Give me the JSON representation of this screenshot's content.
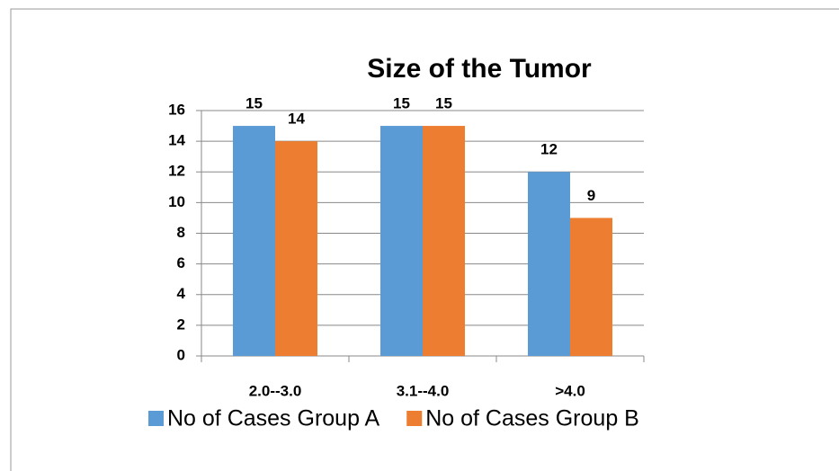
{
  "chart_data": {
    "type": "bar",
    "title": "Size of the Tumor",
    "categories": [
      "2.0--3.0",
      "3.1--4.0",
      ">4.0"
    ],
    "series": [
      {
        "name": "No of Cases Group A",
        "color": "#5b9bd5",
        "values": [
          15,
          15,
          12
        ]
      },
      {
        "name": "No of Cases Group B",
        "color": "#ed7d31",
        "values": [
          14,
          15,
          9
        ]
      }
    ],
    "ylim": [
      0,
      16
    ],
    "yticks": [
      0,
      2,
      4,
      6,
      8,
      10,
      12,
      14,
      16
    ],
    "grid": true,
    "legend": "bottom"
  }
}
